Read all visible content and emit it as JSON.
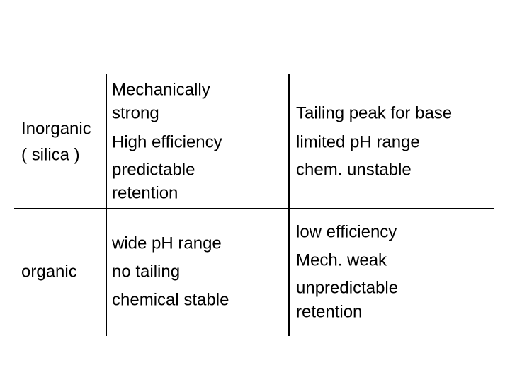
{
  "table": {
    "rows": [
      [
        [
          "Inorganic",
          "( silica )"
        ],
        [
          "Mechanically",
          "strong",
          "High efficiency",
          "predictable",
          "retention"
        ],
        [
          "Tailing peak for base",
          "limited pH range",
          "chem. unstable"
        ]
      ],
      [
        [
          "organic"
        ],
        [
          "wide pH range",
          "no tailing",
          "chemical stable"
        ],
        [
          "low efficiency",
          "Mech. weak",
          "unpredictable",
          "retention"
        ]
      ]
    ]
  }
}
